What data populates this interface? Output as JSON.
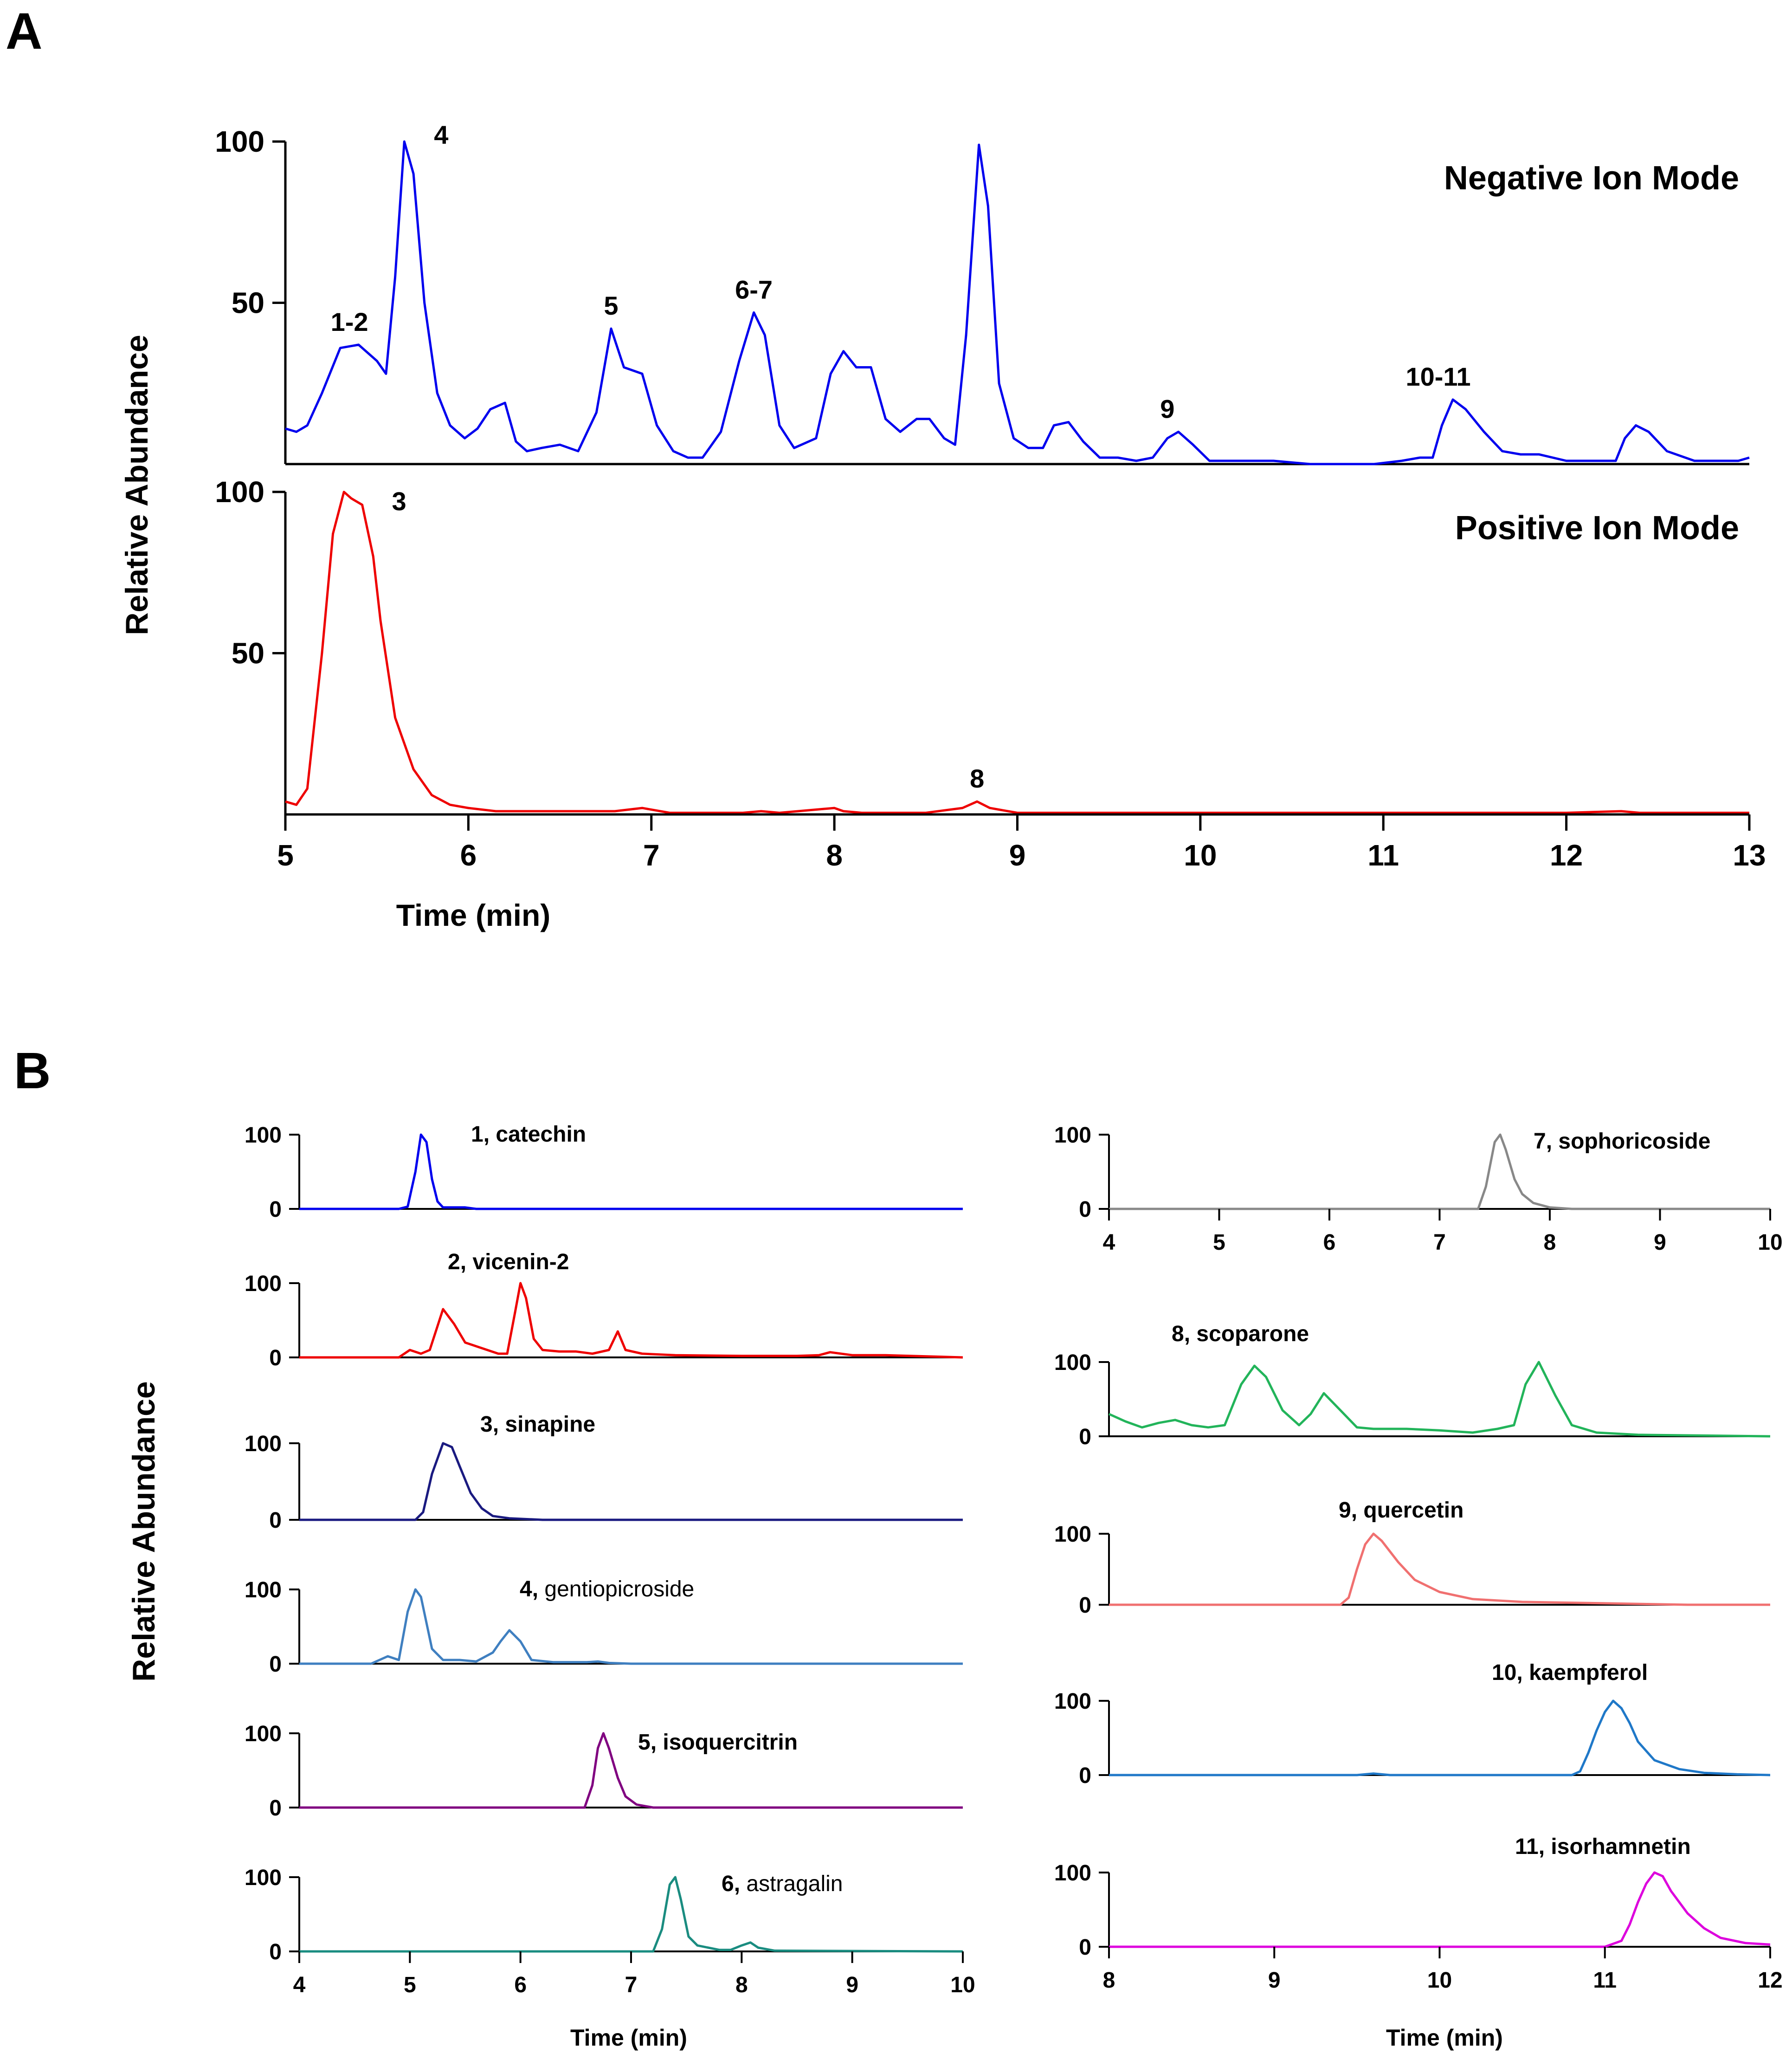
{
  "chart_data": [
    {
      "panel": "A",
      "type": "line",
      "title": "",
      "xlabel": "Time (min)",
      "ylabel": "Relative Abundance",
      "xlim": [
        5,
        13
      ],
      "ylim": [
        0,
        100
      ],
      "x_ticks": [
        "5",
        "6",
        "7",
        "8",
        "9",
        "10",
        "11",
        "12",
        "13"
      ],
      "y_ticks": [
        "50",
        "100"
      ],
      "series": [
        {
          "name": "Negative Ion Mode",
          "color": "#0000ee",
          "x": [
            5.0,
            5.06,
            5.12,
            5.2,
            5.3,
            5.4,
            5.5,
            5.55,
            5.6,
            5.65,
            5.7,
            5.76,
            5.83,
            5.9,
            5.98,
            6.05,
            6.12,
            6.2,
            6.26,
            6.32,
            6.4,
            6.5,
            6.6,
            6.7,
            6.78,
            6.85,
            6.95,
            7.03,
            7.12,
            7.2,
            7.28,
            7.38,
            7.48,
            7.56,
            7.62,
            7.7,
            7.78,
            7.9,
            7.98,
            8.05,
            8.12,
            8.2,
            8.28,
            8.36,
            8.45,
            8.52,
            8.6,
            8.66,
            8.72,
            8.79,
            8.84,
            8.9,
            8.98,
            9.06,
            9.14,
            9.2,
            9.28,
            9.36,
            9.45,
            9.55,
            9.65,
            9.74,
            9.82,
            9.88,
            9.96,
            10.05,
            10.2,
            10.4,
            10.6,
            10.8,
            10.95,
            11.1,
            11.2,
            11.27,
            11.32,
            11.38,
            11.45,
            11.55,
            11.65,
            11.75,
            11.85,
            12.0,
            12.12,
            12.2,
            12.27,
            12.32,
            12.38,
            12.45,
            12.55,
            12.7,
            12.85,
            12.94,
            13.0
          ],
          "y": [
            11,
            10,
            12,
            22,
            36,
            37,
            32,
            28,
            58,
            100,
            90,
            50,
            22,
            12,
            8,
            11,
            17,
            19,
            7,
            4,
            5,
            6,
            4,
            16,
            42,
            30,
            28,
            12,
            4,
            2,
            2,
            10,
            32,
            47,
            40,
            12,
            5,
            8,
            28,
            35,
            30,
            30,
            14,
            10,
            14,
            14,
            8,
            6,
            40,
            99,
            80,
            25,
            8,
            5,
            5,
            12,
            13,
            7,
            2,
            2,
            1,
            2,
            8,
            10,
            6,
            1,
            1,
            1,
            0,
            0,
            0,
            1,
            2,
            2,
            12,
            20,
            17,
            10,
            4,
            3,
            3,
            1,
            1,
            1,
            1,
            8,
            12,
            10,
            4,
            1,
            1,
            1,
            2
          ]
        },
        {
          "name": "Positive Ion Mode",
          "color": "#ee0000",
          "x": [
            5.0,
            5.06,
            5.12,
            5.2,
            5.26,
            5.32,
            5.36,
            5.42,
            5.48,
            5.52,
            5.6,
            5.7,
            5.8,
            5.9,
            6.0,
            6.15,
            6.3,
            6.5,
            6.8,
            6.95,
            7.1,
            7.5,
            7.6,
            7.7,
            8.0,
            8.05,
            8.15,
            8.5,
            8.7,
            8.78,
            8.85,
            9.0,
            9.5,
            10.5,
            11.3,
            12.0,
            12.3,
            12.4,
            13.0
          ],
          "y": [
            4,
            3,
            8,
            50,
            87,
            100,
            98,
            96,
            80,
            60,
            30,
            14,
            6,
            3,
            2,
            1,
            1,
            1,
            1,
            2,
            0.5,
            0.5,
            1,
            0.5,
            2,
            1,
            0.5,
            0.5,
            2,
            4,
            2,
            0.5,
            0.5,
            0.5,
            0.5,
            0.5,
            1,
            0.5,
            0.5
          ]
        }
      ],
      "peak_labels": [
        {
          "text": "1-2",
          "series": "Negative Ion Mode",
          "x": 5.35,
          "y": 37
        },
        {
          "text": "4",
          "series": "Negative Ion Mode",
          "x": 5.75,
          "y": 95
        },
        {
          "text": "5",
          "series": "Negative Ion Mode",
          "x": 6.78,
          "y": 42
        },
        {
          "text": "6-7",
          "series": "Negative Ion Mode",
          "x": 7.56,
          "y": 47
        },
        {
          "text": "9",
          "series": "Negative Ion Mode",
          "x": 9.82,
          "y": 10
        },
        {
          "text": "10-11",
          "series": "Negative Ion Mode",
          "x": 11.3,
          "y": 20
        },
        {
          "text": "3",
          "series": "Positive Ion Mode",
          "x": 5.52,
          "y": 90
        },
        {
          "text": "8",
          "series": "Positive Ion Mode",
          "x": 8.78,
          "y": 4
        }
      ]
    },
    {
      "panel": "B",
      "type": "line",
      "xlabel": "Time (min)",
      "ylabel": "Relative Abundance",
      "ylim": [
        0,
        100
      ],
      "y_ticks": [
        "0",
        "100"
      ],
      "subplots": [
        {
          "id": "1",
          "compound": "catechin",
          "label_bold_all": true,
          "color": "#0000ee",
          "xlim": [
            4,
            10
          ],
          "x": [
            4.0,
            4.9,
            4.98,
            5.05,
            5.1,
            5.15,
            5.2,
            5.25,
            5.3,
            5.5,
            5.6,
            7.0,
            10.0
          ],
          "y": [
            0,
            0,
            3,
            50,
            100,
            90,
            40,
            10,
            2,
            2,
            0,
            0,
            0
          ]
        },
        {
          "id": "2",
          "compound": "vicenin-2",
          "label_bold_all": true,
          "color": "#ee0000",
          "xlim": [
            4,
            10
          ],
          "x": [
            4.0,
            4.9,
            5.0,
            5.1,
            5.18,
            5.3,
            5.4,
            5.5,
            5.6,
            5.8,
            5.88,
            5.95,
            6.0,
            6.05,
            6.12,
            6.2,
            6.35,
            6.5,
            6.65,
            6.8,
            6.88,
            6.95,
            7.1,
            7.4,
            8.0,
            8.5,
            8.7,
            8.8,
            9.0,
            9.3,
            10.0
          ],
          "y": [
            0,
            0,
            10,
            5,
            10,
            65,
            45,
            20,
            15,
            5,
            5,
            60,
            100,
            80,
            25,
            10,
            8,
            8,
            5,
            10,
            35,
            10,
            5,
            3,
            2,
            2,
            3,
            7,
            3,
            3,
            0
          ]
        },
        {
          "id": "3",
          "compound": "sinapine",
          "label_bold_all": true,
          "color": "#1a1a80",
          "xlim": [
            4,
            10
          ],
          "x": [
            4.0,
            5.05,
            5.12,
            5.2,
            5.3,
            5.38,
            5.45,
            5.55,
            5.65,
            5.75,
            5.9,
            6.2,
            10.0
          ],
          "y": [
            0,
            0,
            10,
            60,
            100,
            95,
            70,
            35,
            15,
            5,
            2,
            0,
            0
          ]
        },
        {
          "id": "4",
          "compound": "gentiopicroside",
          "label_bold_all": false,
          "color": "#3f7fc0",
          "xlim": [
            4,
            10
          ],
          "x": [
            4.0,
            4.65,
            4.8,
            4.9,
            4.98,
            5.05,
            5.1,
            5.2,
            5.3,
            5.45,
            5.6,
            5.75,
            5.82,
            5.9,
            6.0,
            6.1,
            6.3,
            6.6,
            6.7,
            6.8,
            7.0,
            10.0
          ],
          "y": [
            0,
            0,
            10,
            5,
            70,
            100,
            90,
            20,
            5,
            5,
            3,
            15,
            30,
            45,
            30,
            5,
            2,
            2,
            3,
            1,
            0,
            0
          ]
        },
        {
          "id": "5",
          "compound": "isoquercitrin",
          "label_bold_all": true,
          "color": "#800080",
          "xlim": [
            4,
            10
          ],
          "x": [
            4.0,
            6.58,
            6.65,
            6.7,
            6.75,
            6.8,
            6.88,
            6.95,
            7.05,
            7.2,
            10.0
          ],
          "y": [
            0,
            0,
            30,
            80,
            100,
            80,
            40,
            15,
            4,
            0,
            0
          ]
        },
        {
          "id": "6",
          "compound": "astragalin",
          "label_bold_all": false,
          "color": "#1a8c80",
          "xlim": [
            4,
            10
          ],
          "x": [
            4.0,
            7.2,
            7.28,
            7.35,
            7.4,
            7.45,
            7.52,
            7.6,
            7.7,
            7.8,
            7.9,
            8.0,
            8.08,
            8.15,
            8.3,
            10.0
          ],
          "y": [
            0,
            0,
            30,
            90,
            100,
            70,
            20,
            8,
            5,
            2,
            2,
            8,
            12,
            5,
            1,
            0
          ]
        },
        {
          "id": "7",
          "compound": "sophoricoside",
          "label_bold_all": true,
          "color": "#888888",
          "xlim": [
            4,
            10
          ],
          "x": [
            4.0,
            7.35,
            7.42,
            7.5,
            7.55,
            7.6,
            7.68,
            7.75,
            7.85,
            8.0,
            8.2,
            10.0
          ],
          "y": [
            0,
            0,
            30,
            90,
            100,
            80,
            40,
            20,
            8,
            2,
            0,
            0
          ]
        },
        {
          "id": "8",
          "compound": "scoparone",
          "label_bold_all": true,
          "color": "#22b45a",
          "xlim": [
            8,
            12
          ],
          "x": [
            8.0,
            8.1,
            8.2,
            8.3,
            8.4,
            8.5,
            8.6,
            8.7,
            8.8,
            8.88,
            8.95,
            9.05,
            9.15,
            9.22,
            9.3,
            9.4,
            9.5,
            9.6,
            9.8,
            10.0,
            10.2,
            10.35,
            10.45,
            10.52,
            10.6,
            10.7,
            10.8,
            10.95,
            11.2,
            12.0
          ],
          "y": [
            30,
            20,
            12,
            18,
            22,
            15,
            12,
            15,
            70,
            95,
            80,
            35,
            15,
            30,
            58,
            35,
            12,
            10,
            10,
            8,
            5,
            10,
            15,
            70,
            100,
            55,
            15,
            5,
            2,
            0
          ]
        },
        {
          "id": "9",
          "compound": "quercetin",
          "label_bold_all": true,
          "color": "#f07070",
          "xlim": [
            8,
            12
          ],
          "x": [
            8.0,
            9.4,
            9.45,
            9.5,
            9.55,
            9.6,
            9.65,
            9.75,
            9.85,
            10.0,
            10.2,
            10.5,
            11.0,
            11.5,
            12.0
          ],
          "y": [
            0,
            0,
            10,
            50,
            85,
            100,
            90,
            60,
            35,
            18,
            8,
            4,
            2,
            0,
            0
          ]
        },
        {
          "id": "10",
          "compound": "kaempferol",
          "label_bold_all": true,
          "color": "#1f78c8",
          "xlim": [
            8,
            12
          ],
          "x": [
            8.0,
            9.5,
            9.6,
            9.7,
            10.8,
            10.85,
            10.9,
            10.95,
            11.0,
            11.05,
            11.1,
            11.15,
            11.2,
            11.3,
            11.45,
            11.6,
            11.8,
            12.0
          ],
          "y": [
            0,
            0,
            2,
            0,
            0,
            5,
            30,
            60,
            85,
            100,
            90,
            70,
            45,
            20,
            8,
            3,
            1,
            0
          ]
        },
        {
          "id": "11",
          "compound": "isorhamnetin",
          "label_bold_all": true,
          "color": "#dd00dd",
          "xlim": [
            8,
            12
          ],
          "x": [
            8.0,
            11.0,
            11.1,
            11.15,
            11.2,
            11.25,
            11.3,
            11.35,
            11.4,
            11.5,
            11.6,
            11.7,
            11.85,
            12.0
          ],
          "y": [
            0,
            0,
            8,
            30,
            60,
            85,
            100,
            95,
            75,
            45,
            25,
            12,
            5,
            3
          ]
        }
      ],
      "x_ticks_left": [
        "4",
        "5",
        "6",
        "7",
        "8",
        "9",
        "10"
      ],
      "x_ticks_right": [
        "8",
        "9",
        "10",
        "11",
        "12"
      ],
      "x_ticks_top_right": [
        "4",
        "5",
        "6",
        "7",
        "8",
        "9",
        "10"
      ]
    }
  ],
  "panels": {
    "a": "A",
    "b": "B"
  },
  "labels": {
    "neg_mode": "Negative Ion Mode",
    "pos_mode": "Positive Ion Mode",
    "time": "Time (min)",
    "time_b": "Time  (min)",
    "rel_abundance": "Relative Abundance"
  }
}
